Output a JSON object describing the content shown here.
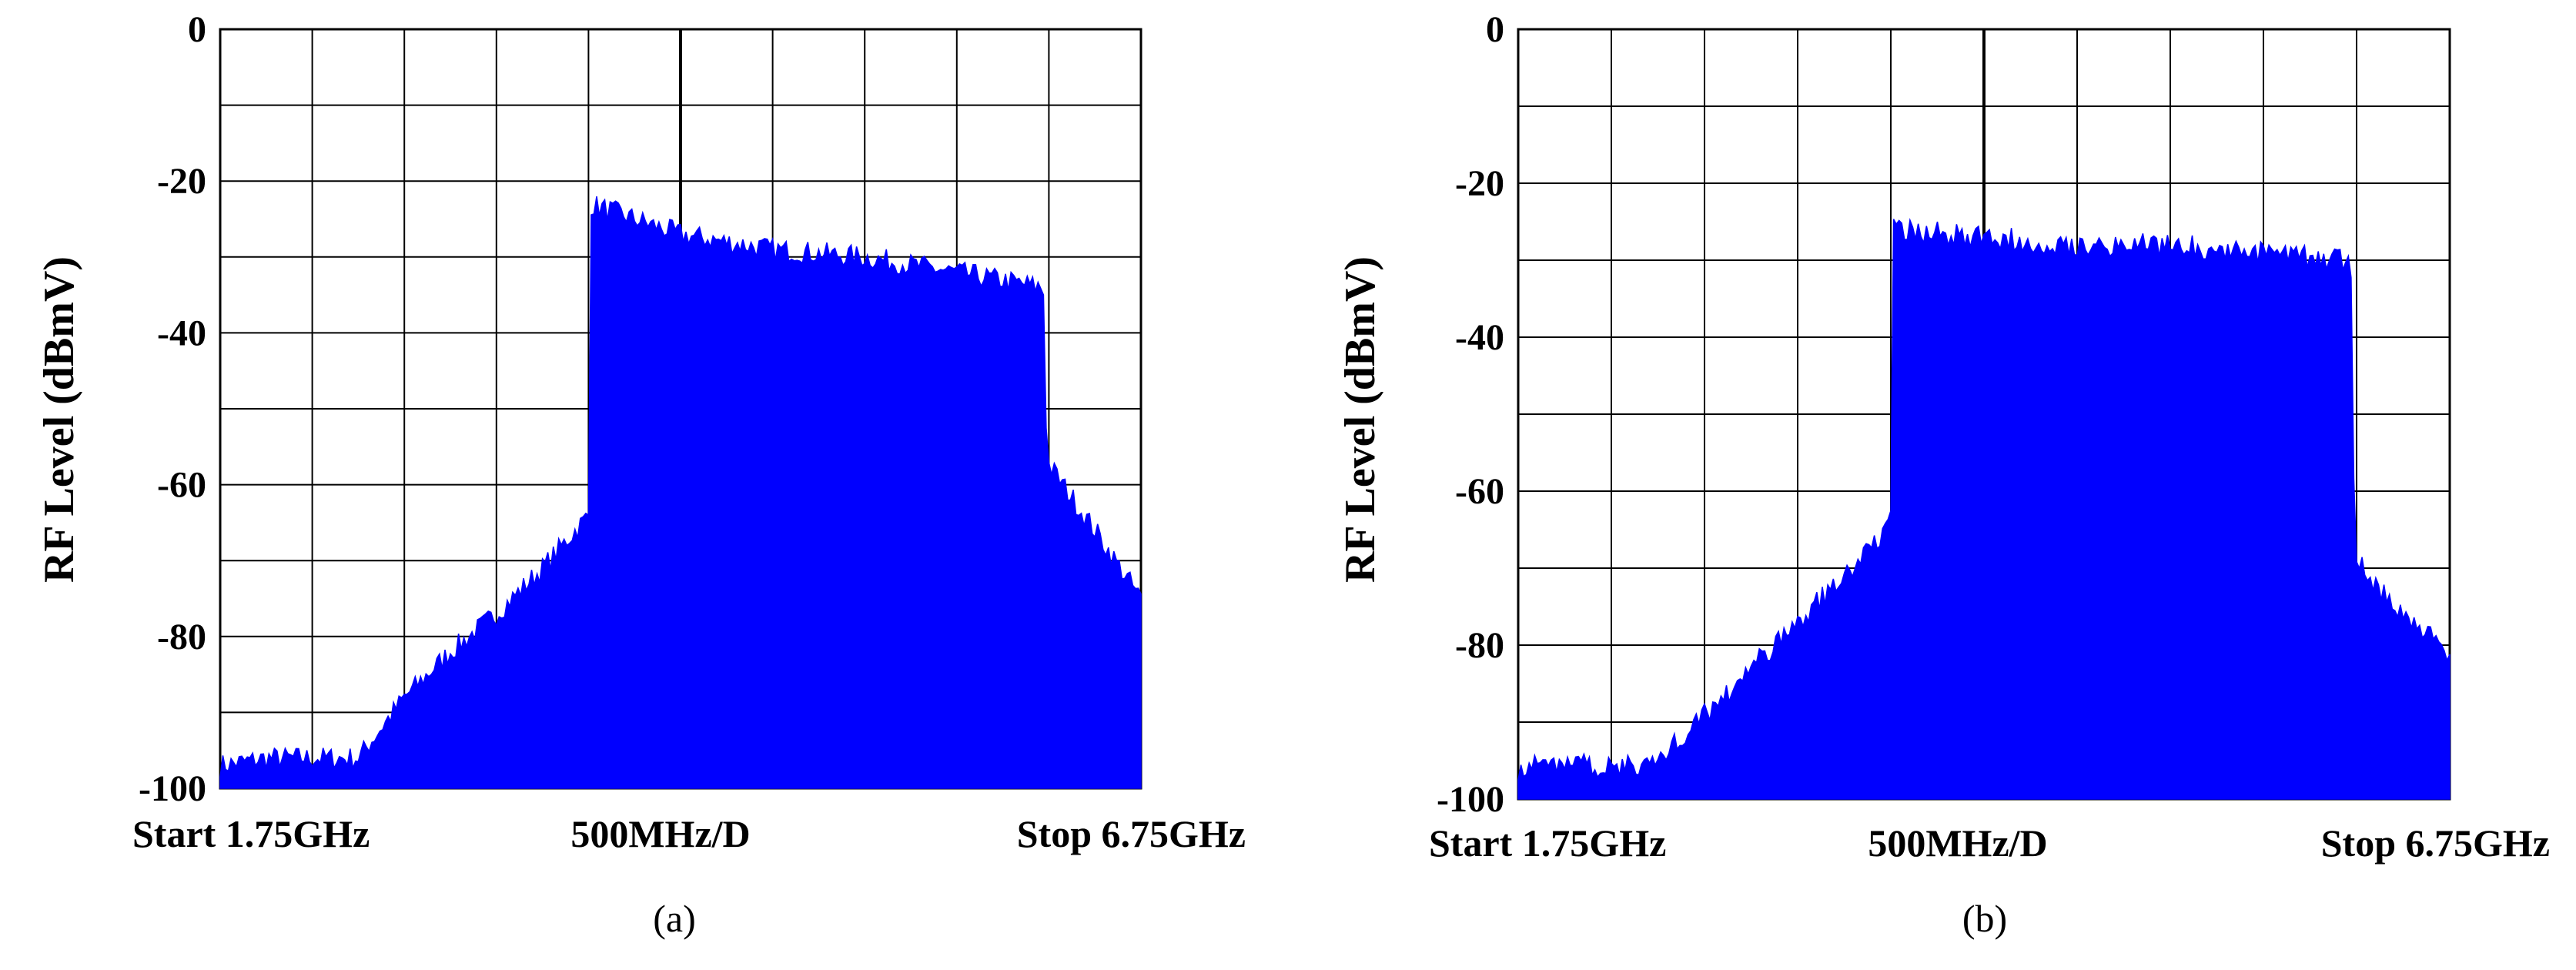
{
  "chart_data": [
    {
      "type": "area",
      "caption": "(a)",
      "ylabel": "RF Level (dBmV)",
      "xlim": [
        1.75,
        6.75
      ],
      "ylim": [
        -100,
        0
      ],
      "yticks": [
        0,
        -20,
        -40,
        -60,
        -80,
        -100
      ],
      "yticklabels": [
        "0",
        "-20",
        "-40",
        "-60",
        "-80",
        "-100"
      ],
      "x_labels": {
        "start": "Start 1.75GHz",
        "center": "500MHz/D",
        "stop": "Stop 6.75GHz"
      },
      "grid": true,
      "color": "#0000ff",
      "series": [
        {
          "x": [
            1.75,
            2.0,
            2.25,
            2.5,
            2.75,
            3.0,
            3.25,
            3.5,
            3.75,
            3.74,
            3.76,
            4.25,
            4.75,
            5.25,
            5.75,
            6.22,
            6.24,
            6.5,
            6.75
          ],
          "values": [
            -97,
            -96,
            -96,
            -96,
            -88,
            -82,
            -77,
            -71,
            -64,
            -64,
            -23,
            -27,
            -29,
            -30,
            -32,
            -34,
            -57,
            -66,
            -75
          ]
        }
      ]
    },
    {
      "type": "area",
      "caption": "(b)",
      "ylabel": "RF Level (dBmV)",
      "xlim": [
        1.75,
        6.75
      ],
      "ylim": [
        -100,
        0
      ],
      "yticks": [
        0,
        -20,
        -40,
        -60,
        -80,
        -100
      ],
      "yticklabels": [
        "0",
        "-20",
        "-40",
        "-60",
        "-80",
        "-100"
      ],
      "x_labels": {
        "start": "Start 1.75GHz",
        "center": "500MHz/D",
        "stop": "Stop 6.75GHz"
      },
      "grid": true,
      "color": "#0000ff",
      "series": [
        {
          "x": [
            1.75,
            2.0,
            2.25,
            2.5,
            2.75,
            3.0,
            3.25,
            3.5,
            3.75,
            3.76,
            4.25,
            4.75,
            5.25,
            5.75,
            6.22,
            6.24,
            6.5,
            6.75
          ],
          "values": [
            -96,
            -95,
            -96,
            -95,
            -89,
            -83,
            -77,
            -71,
            -64,
            -26,
            -27,
            -28,
            -28,
            -29,
            -30,
            -69,
            -76,
            -81
          ]
        }
      ]
    }
  ]
}
